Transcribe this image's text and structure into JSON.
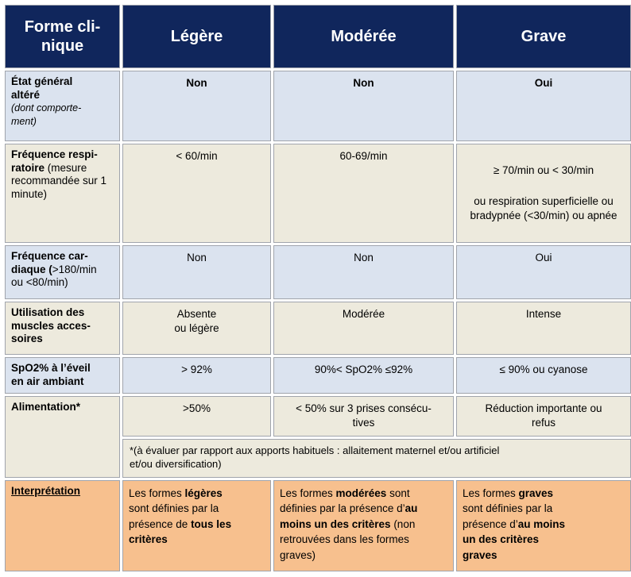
{
  "palette": {
    "header_bg": "#10265c",
    "header_text": "#ffffff",
    "row_blue": "#dbe3ef",
    "row_beige": "#edeadd",
    "row_orange": "#f7c08e",
    "border": "#a0a4ac",
    "text": "#000000",
    "page_bg": "#ffffff"
  },
  "header": {
    "forme": "Forme cli-\nnique",
    "legere": "Légère",
    "moderee": "Modérée",
    "grave": "Grave"
  },
  "rows": [
    {
      "label": [
        {
          "t": "État général\naltéré",
          "b": 1
        },
        {
          "t": "\n(dont comporte-\nment)",
          "i": 1,
          "s": 1
        }
      ],
      "legere": "Non",
      "moderee": "Non",
      "grave": "Oui"
    },
    {
      "label": [
        {
          "t": "Fréquence respi-\nratoire",
          "b": 1
        },
        {
          "t": " (mesure\nrecommandée sur 1\nminute)"
        }
      ],
      "legere": "< 60/min",
      "moderee": "60-69/min",
      "grave_line1": "≥ 70/min ou < 30/min",
      "grave_line2": "ou respiration superficielle ou bradypnée (<30/min) ou apnée"
    },
    {
      "label": [
        {
          "t": "Fréquence car-\ndiaque (",
          "b": 1
        },
        {
          "t": ">180/min\nou <80/min)"
        }
      ],
      "legere": "Non",
      "moderee": "Non",
      "grave": "Oui"
    },
    {
      "label": [
        {
          "t": "Utilisation des\nmuscles acces-\nsoires",
          "b": 1
        }
      ],
      "legere": "Absente\nou légère",
      "moderee": "Modérée",
      "grave": "Intense"
    },
    {
      "label": [
        {
          "t": "SpO2% à l’éveil\nen air ambiant",
          "b": 1
        }
      ],
      "legere": "> 92%",
      "moderee": "90%< SpO2% ≤92%",
      "grave": "≤ 90% ou cyanose"
    },
    {
      "label": [
        {
          "t": "Alimentation*",
          "b": 1
        }
      ],
      "legere": ">50%",
      "moderee": "< 50% sur 3 prises consécu-\ntives",
      "grave": "Réduction importante ou\nrefus",
      "footnote": "*(à évaluer par rapport aux apports habituels : allaitement maternel et/ou artificiel\net/ou diversification)"
    },
    {
      "label": [
        {
          "t": "Interprétation",
          "b": 1,
          "u": 1
        }
      ],
      "legere": [
        {
          "t": "Les formes "
        },
        {
          "t": "légères",
          "b": 1
        },
        {
          "t": "\nsont définies par la\nprésence de "
        },
        {
          "t": "tous les\ncritères",
          "b": 1
        }
      ],
      "moderee": [
        {
          "t": "Les formes "
        },
        {
          "t": "modérées",
          "b": 1
        },
        {
          "t": " sont\ndéfinies par la présence d’"
        },
        {
          "t": "au\nmoins un des critères",
          "b": 1
        },
        {
          "t": " (non\nretrouvées dans les formes\ngraves)"
        }
      ],
      "grave": [
        {
          "t": "Les formes "
        },
        {
          "t": "graves",
          "b": 1
        },
        {
          "t": "\nsont définies par la\nprésence d’"
        },
        {
          "t": "au moins\nun des critères\ngraves",
          "b": 1
        }
      ]
    }
  ]
}
